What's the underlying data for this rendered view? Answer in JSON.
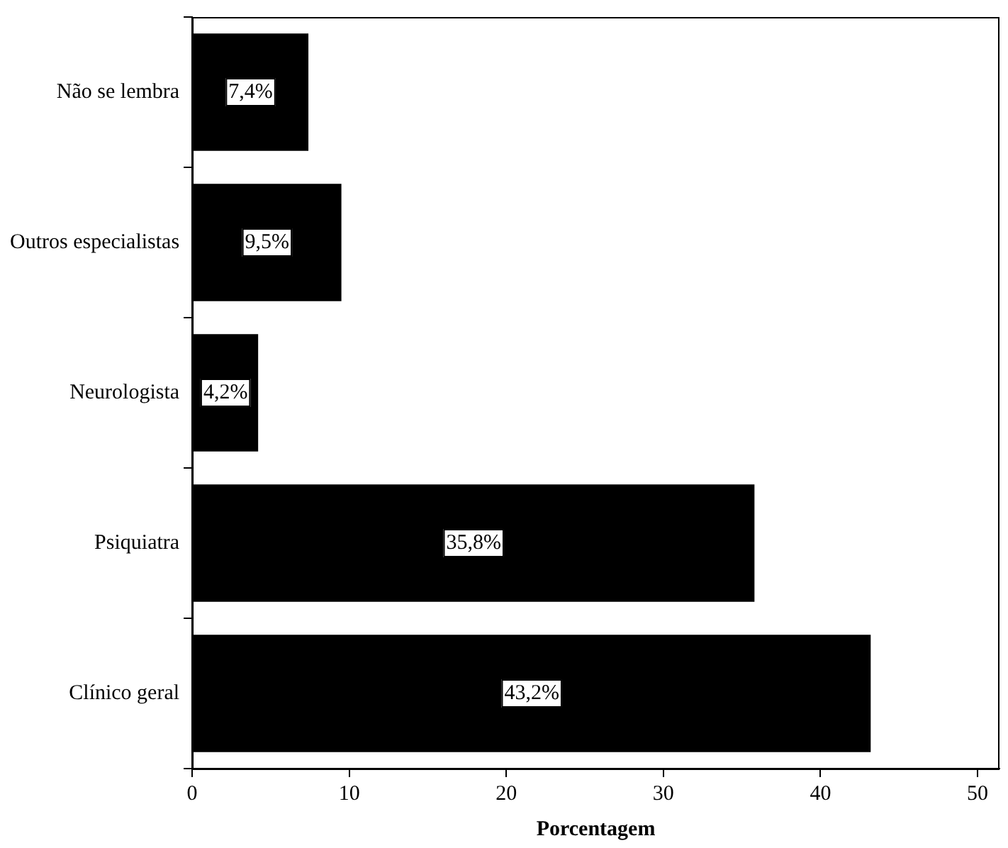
{
  "chart_data": {
    "type": "bar",
    "orientation": "horizontal",
    "xlabel": "Porcentagem",
    "categories": [
      "Não se lembra",
      "Outros especialistas",
      "Neurologista",
      "Psiquiatra",
      "Clínico geral"
    ],
    "values": [
      7.4,
      9.5,
      4.2,
      35.8,
      43.2
    ],
    "value_labels": [
      "7,4%",
      "9,5%",
      "4,2%",
      "35,8%",
      "43,2%"
    ],
    "color": "#000000",
    "xlim": [
      0,
      51.4
    ],
    "xticks": [
      0,
      10,
      20,
      30,
      40,
      50
    ],
    "grid": false,
    "legend": false
  }
}
